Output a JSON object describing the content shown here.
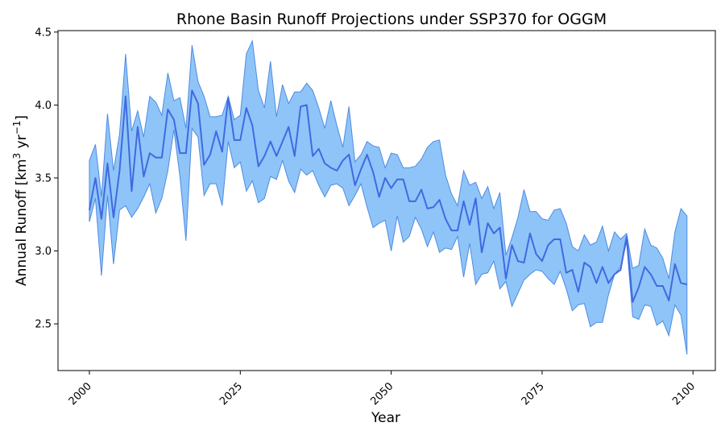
{
  "chart_data": {
    "type": "line",
    "title": "Rhone Basin Runoff Projections under SSP370 for OGGM",
    "xlabel": "Year",
    "ylabel_parts": {
      "base": "Annual Runoff [km",
      "sup1": "3",
      "mid": " yr",
      "sup2": "−1",
      "end": "]"
    },
    "xlim": [
      1994.8,
      2103.7
    ],
    "ylim": [
      2.18,
      4.51
    ],
    "xticks": [
      2000,
      2025,
      2050,
      2075,
      2100
    ],
    "xtick_labels": [
      "2000",
      "2025",
      "2050",
      "2075",
      "2100"
    ],
    "yticks": [
      2.5,
      3.0,
      3.5,
      4.0,
      4.5
    ],
    "ytick_labels": [
      "2.5",
      "3.0",
      "3.5",
      "4.0",
      "4.5"
    ],
    "grid": false,
    "colors": {
      "line": "#4169e1",
      "band": "#8ec4f8",
      "band_edge": "#4f8be0"
    },
    "x_start": 2000,
    "series": [
      {
        "kind": "mean",
        "values": [
          3.28,
          3.5,
          3.22,
          3.6,
          3.23,
          3.55,
          4.06,
          3.41,
          3.85,
          3.51,
          3.67,
          3.64,
          3.64,
          3.97,
          3.9,
          3.67,
          3.67,
          4.1,
          4.01,
          3.59,
          3.66,
          3.82,
          3.68,
          4.05,
          3.76,
          3.76,
          3.98,
          3.86,
          3.58,
          3.65,
          3.75,
          3.65,
          3.75,
          3.85,
          3.65,
          3.99,
          4.0,
          3.65,
          3.7,
          3.6,
          3.57,
          3.55,
          3.62,
          3.66,
          3.45,
          3.56,
          3.66,
          3.54,
          3.37,
          3.5,
          3.43,
          3.49,
          3.49,
          3.34,
          3.34,
          3.42,
          3.29,
          3.3,
          3.35,
          3.22,
          3.14,
          3.14,
          3.34,
          3.18,
          3.36,
          2.99,
          3.19,
          3.12,
          3.16,
          2.81,
          3.04,
          2.93,
          2.92,
          3.12,
          2.98,
          2.93,
          3.04,
          3.08,
          3.08,
          2.85,
          2.87,
          2.72,
          2.92,
          2.89,
          2.78,
          2.89,
          2.78,
          2.84,
          2.87,
          3.1,
          2.65,
          2.75,
          2.89,
          2.84,
          2.76,
          2.76,
          2.66,
          2.91,
          2.78,
          2.77
        ]
      },
      {
        "kind": "upper",
        "values": [
          3.62,
          3.73,
          3.37,
          3.94,
          3.55,
          3.8,
          4.35,
          3.82,
          3.96,
          3.78,
          4.06,
          4.02,
          3.93,
          4.22,
          4.03,
          4.05,
          3.84,
          4.41,
          4.16,
          4.06,
          3.92,
          3.92,
          3.93,
          4.06,
          3.9,
          3.93,
          4.35,
          4.44,
          4.1,
          3.98,
          4.3,
          3.92,
          4.14,
          4.01,
          4.09,
          4.09,
          4.15,
          4.1,
          3.98,
          3.84,
          4.03,
          3.86,
          3.71,
          3.99,
          3.61,
          3.66,
          3.75,
          3.72,
          3.71,
          3.57,
          3.67,
          3.66,
          3.57,
          3.57,
          3.58,
          3.63,
          3.71,
          3.75,
          3.76,
          3.52,
          3.39,
          3.31,
          3.55,
          3.45,
          3.47,
          3.36,
          3.44,
          3.29,
          3.4,
          2.97,
          3.09,
          3.23,
          3.42,
          3.27,
          3.27,
          3.22,
          3.21,
          3.28,
          3.29,
          3.19,
          3.03,
          3.0,
          3.11,
          3.04,
          3.06,
          3.17,
          3.0,
          3.13,
          3.08,
          3.12,
          2.88,
          2.9,
          3.15,
          3.04,
          3.02,
          2.95,
          2.81,
          3.13,
          3.29,
          3.24
        ]
      },
      {
        "kind": "lower",
        "values": [
          3.2,
          3.36,
          2.83,
          3.38,
          2.91,
          3.28,
          3.31,
          3.23,
          3.29,
          3.37,
          3.46,
          3.26,
          3.36,
          3.55,
          3.83,
          3.51,
          3.07,
          3.84,
          3.78,
          3.38,
          3.46,
          3.46,
          3.31,
          3.75,
          3.57,
          3.61,
          3.41,
          3.48,
          3.33,
          3.36,
          3.51,
          3.49,
          3.62,
          3.48,
          3.4,
          3.56,
          3.52,
          3.55,
          3.45,
          3.37,
          3.45,
          3.46,
          3.43,
          3.31,
          3.38,
          3.46,
          3.3,
          3.16,
          3.19,
          3.21,
          3.0,
          3.24,
          3.06,
          3.1,
          3.23,
          3.15,
          3.03,
          3.13,
          2.99,
          3.02,
          3.01,
          3.1,
          2.82,
          3.05,
          2.77,
          2.84,
          2.85,
          2.93,
          2.74,
          2.79,
          2.62,
          2.71,
          2.8,
          2.84,
          2.87,
          2.86,
          2.81,
          2.77,
          2.86,
          2.74,
          2.59,
          2.63,
          2.64,
          2.48,
          2.51,
          2.51,
          2.7,
          2.84,
          2.89,
          3.06,
          2.55,
          2.53,
          2.63,
          2.62,
          2.49,
          2.52,
          2.42,
          2.63,
          2.56,
          2.29
        ]
      }
    ]
  }
}
